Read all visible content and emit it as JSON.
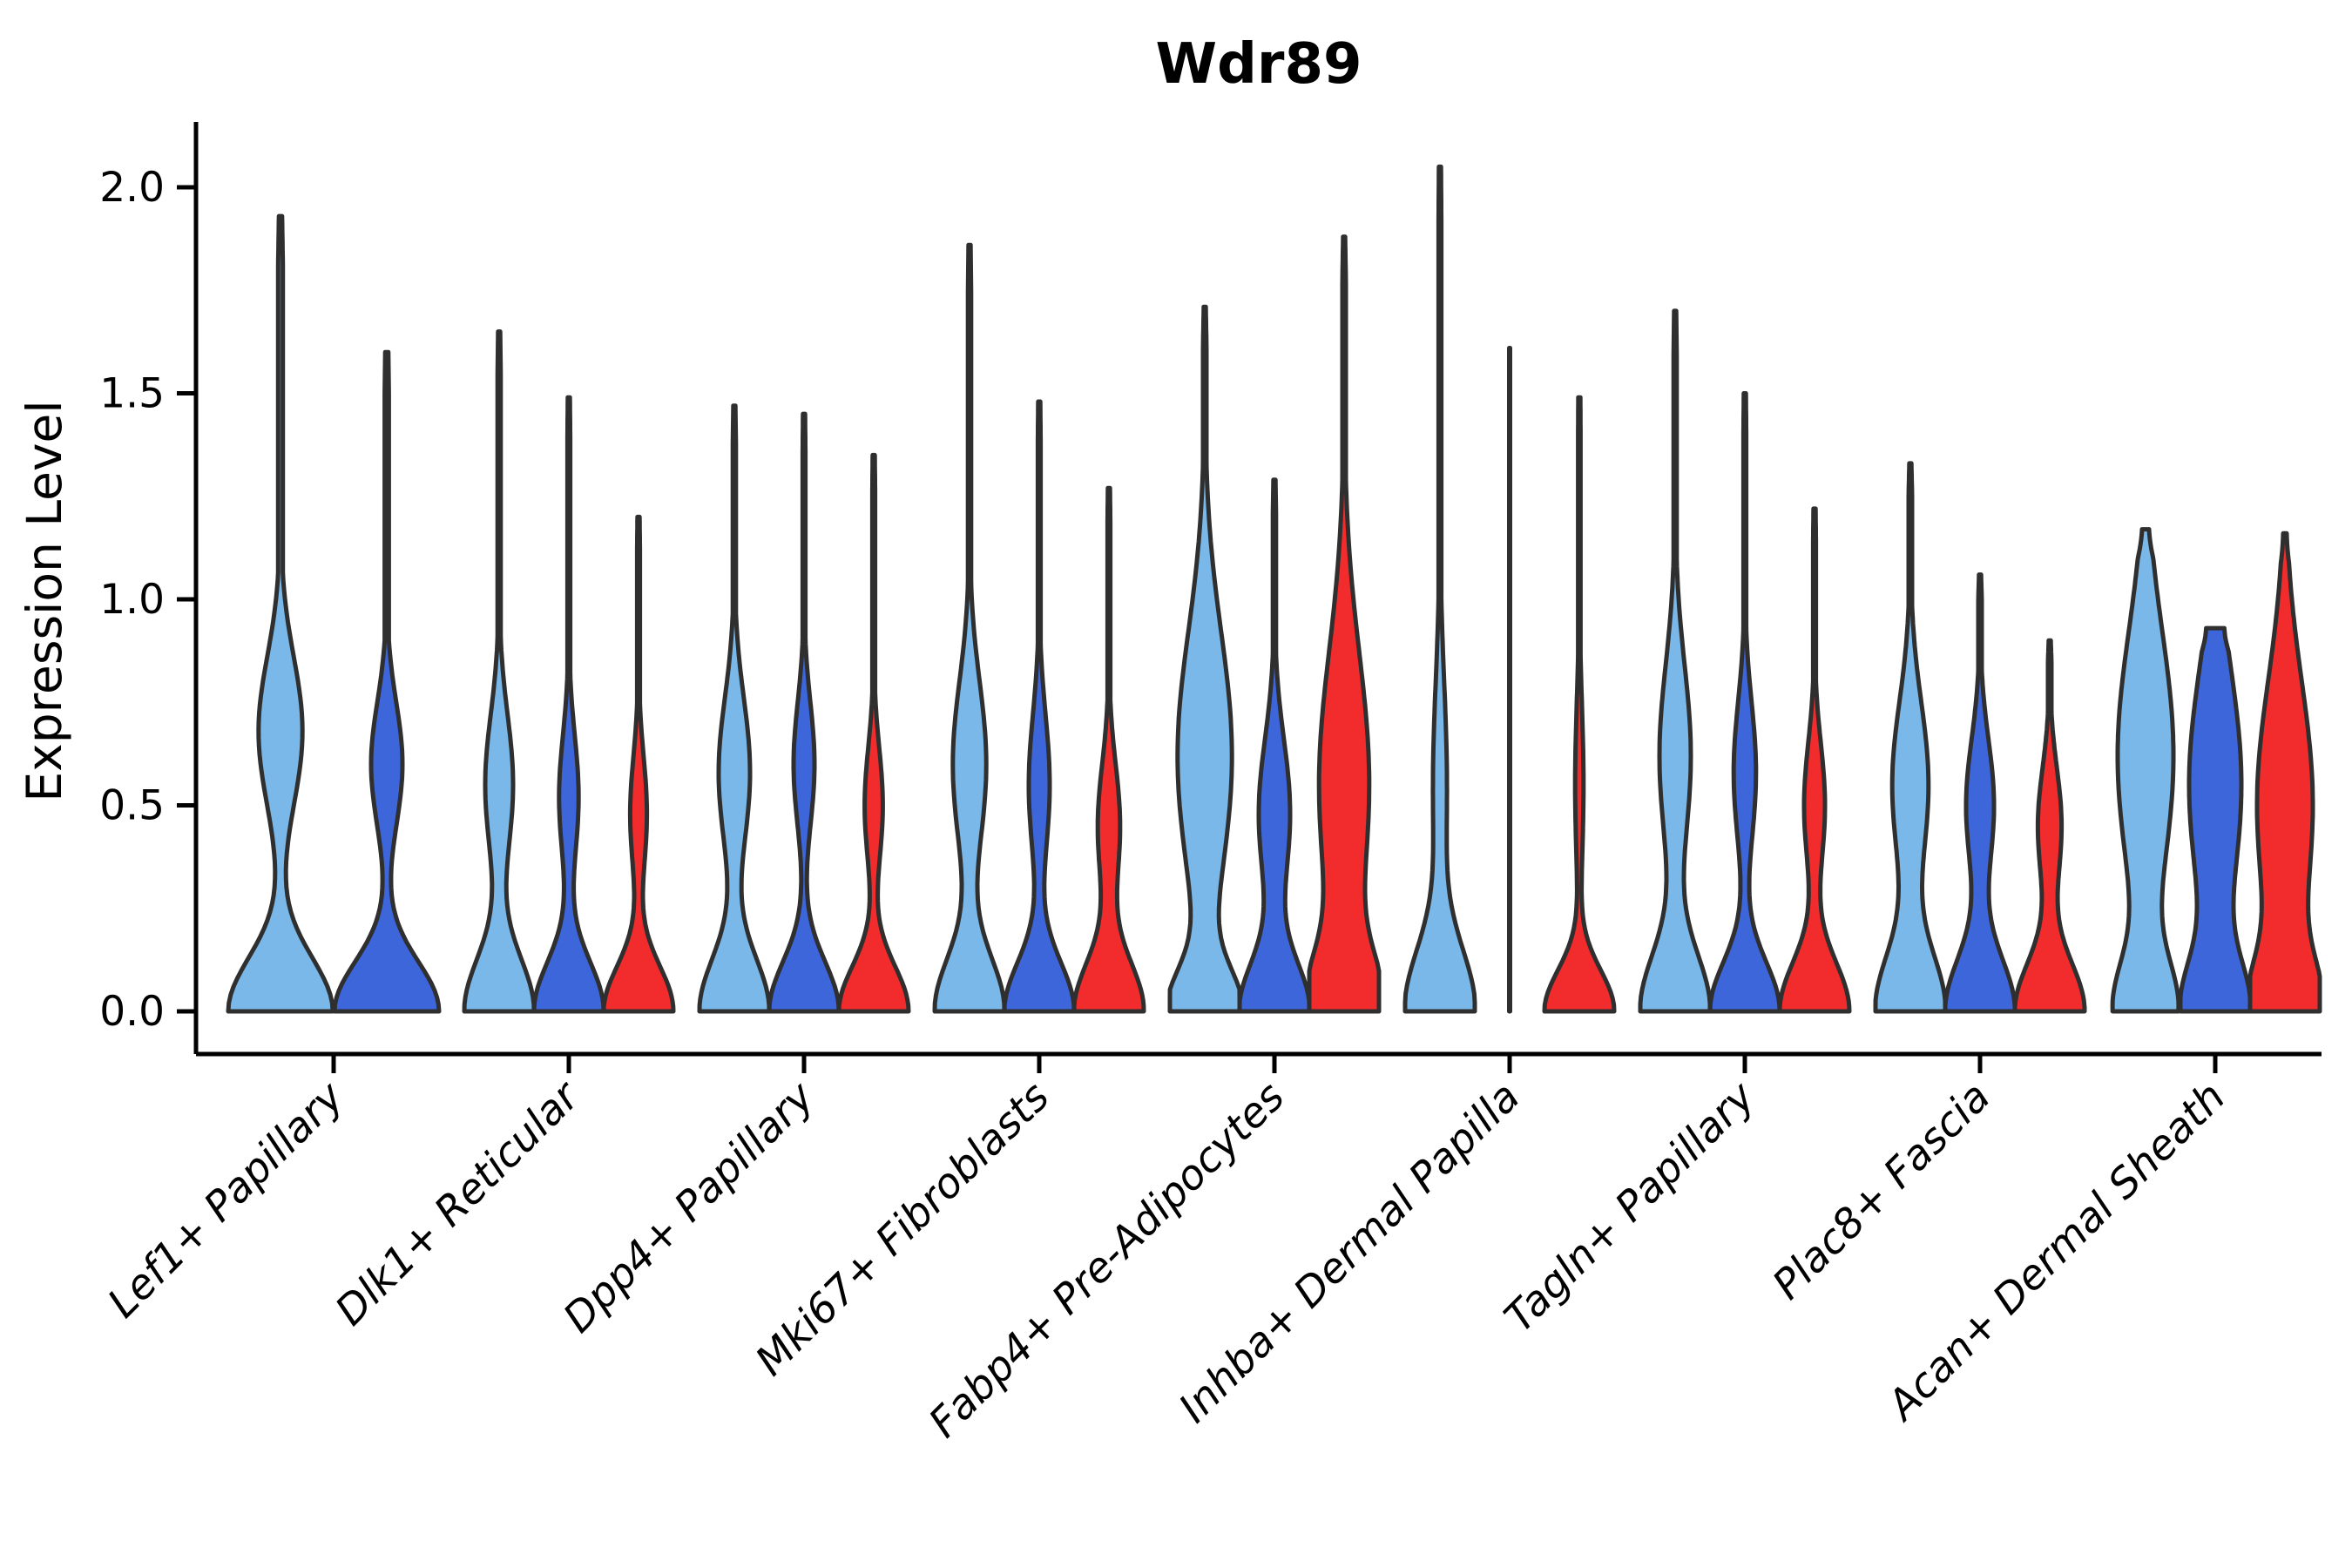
{
  "title": "Wdr89",
  "y_axis": {
    "label": "Expression Level",
    "tick_labels": [
      "0.0",
      "0.5",
      "1.0",
      "1.5",
      "2.0"
    ],
    "tick_values": [
      0.0,
      0.5,
      1.0,
      1.5,
      2.0
    ]
  },
  "colors": {
    "light_blue": "#79B8E8",
    "dark_blue": "#3E66DB",
    "red": "#F22C2C",
    "outline": "#2F2F2F",
    "axis": "#000000"
  },
  "chart_data": {
    "type": "violin",
    "title": "Wdr89",
    "xlabel": "",
    "ylabel": "Expression Level",
    "ylim": [
      0,
      2.16
    ],
    "yticks": [
      0.0,
      0.5,
      1.0,
      1.5,
      2.0
    ],
    "legend": "none",
    "grid": false,
    "categories": [
      "Lef1+ Papillary",
      "Dlk1+ Reticular",
      "Dpp4+ Papillary",
      "Mki67+ Fibroblasts",
      "Fabp4+ Pre-Adipocytes",
      "Inhba+ Dermal Papilla",
      "Tagln+ Papillary",
      "Plac8+ Fascia",
      "Acan+ Dermal Sheath"
    ],
    "groups": [
      {
        "category": "Lef1+ Papillary",
        "violins": [
          {
            "sample": "light_blue",
            "max": 1.93,
            "shape": {
              "base_w": 1.0,
              "base_s": 0.13,
              "bulge_v": 0.68,
              "bulge_w": 0.42,
              "bulge_s": 0.18,
              "stem_w": 0.045,
              "top_w": 0.03
            }
          },
          {
            "sample": "dark_blue",
            "max": 1.6,
            "shape": {
              "base_w": 1.0,
              "base_s": 0.12,
              "bulge_v": 0.6,
              "bulge_w": 0.3,
              "bulge_s": 0.15,
              "stem_w": 0.04,
              "top_w": 0.03
            }
          }
        ]
      },
      {
        "category": "Dlk1+ Reticular",
        "violins": [
          {
            "sample": "light_blue",
            "max": 1.65,
            "shape": {
              "base_w": 1.0,
              "base_s": 0.13,
              "bulge_v": 0.55,
              "bulge_w": 0.4,
              "bulge_s": 0.17,
              "stem_w": 0.045,
              "top_w": 0.03
            }
          },
          {
            "sample": "dark_blue",
            "max": 1.49,
            "shape": {
              "base_w": 1.0,
              "base_s": 0.12,
              "bulge_v": 0.52,
              "bulge_w": 0.28,
              "bulge_s": 0.15,
              "stem_w": 0.04,
              "top_w": 0.03
            }
          },
          {
            "sample": "red",
            "max": 1.2,
            "shape": {
              "base_w": 1.0,
              "base_s": 0.11,
              "bulge_v": 0.48,
              "bulge_w": 0.24,
              "bulge_s": 0.14,
              "stem_w": 0.04,
              "top_w": 0.03
            }
          }
        ]
      },
      {
        "category": "Dpp4+ Papillary",
        "violins": [
          {
            "sample": "light_blue",
            "max": 1.47,
            "shape": {
              "base_w": 1.0,
              "base_s": 0.13,
              "bulge_v": 0.58,
              "bulge_w": 0.45,
              "bulge_s": 0.18,
              "stem_w": 0.045,
              "top_w": 0.03
            }
          },
          {
            "sample": "dark_blue",
            "max": 1.45,
            "shape": {
              "base_w": 1.0,
              "base_s": 0.12,
              "bulge_v": 0.6,
              "bulge_w": 0.3,
              "bulge_s": 0.15,
              "stem_w": 0.04,
              "top_w": 0.03
            }
          },
          {
            "sample": "red",
            "max": 1.35,
            "shape": {
              "base_w": 1.0,
              "base_s": 0.11,
              "bulge_v": 0.5,
              "bulge_w": 0.26,
              "bulge_s": 0.14,
              "stem_w": 0.04,
              "top_w": 0.03
            }
          }
        ]
      },
      {
        "category": "Mki67+ Fibroblasts",
        "violins": [
          {
            "sample": "light_blue",
            "max": 1.86,
            "shape": {
              "base_w": 1.0,
              "base_s": 0.13,
              "bulge_v": 0.6,
              "bulge_w": 0.48,
              "bulge_s": 0.2,
              "stem_w": 0.045,
              "top_w": 0.03
            }
          },
          {
            "sample": "dark_blue",
            "max": 1.48,
            "shape": {
              "base_w": 1.0,
              "base_s": 0.12,
              "bulge_v": 0.55,
              "bulge_w": 0.3,
              "bulge_s": 0.17,
              "stem_w": 0.04,
              "top_w": 0.03
            }
          },
          {
            "sample": "red",
            "max": 1.27,
            "shape": {
              "base_w": 1.0,
              "base_s": 0.12,
              "bulge_v": 0.45,
              "bulge_w": 0.32,
              "bulge_s": 0.15,
              "stem_w": 0.04,
              "top_w": 0.03
            }
          }
        ]
      },
      {
        "category": "Fabp4+ Pre-Adipocytes",
        "violins": [
          {
            "sample": "light_blue",
            "max": 1.71,
            "shape": {
              "base_w": 1.0,
              "base_s": 0.1,
              "bulge_v": 0.62,
              "bulge_w": 0.78,
              "bulge_s": 0.3,
              "stem_w": 0.05,
              "top_w": 0.03
            }
          },
          {
            "sample": "dark_blue",
            "max": 1.29,
            "shape": {
              "base_w": 1.0,
              "base_s": 0.12,
              "bulge_v": 0.48,
              "bulge_w": 0.45,
              "bulge_s": 0.18,
              "stem_w": 0.045,
              "top_w": 0.03
            }
          },
          {
            "sample": "red",
            "max": 1.88,
            "shape": {
              "base_w": 1.0,
              "base_s": 0.13,
              "bulge_v": 0.55,
              "bulge_w": 0.72,
              "bulge_s": 0.32,
              "stem_w": 0.05,
              "top_w": 0.03
            }
          }
        ]
      },
      {
        "category": "Inhba+ Dermal Papilla",
        "violins": [
          {
            "sample": "light_blue",
            "max": 2.05,
            "shape": {
              "base_w": 1.0,
              "base_s": 0.15,
              "bulge_v": 0.55,
              "bulge_w": 0.2,
              "bulge_s": 0.25,
              "stem_w": 0.04,
              "top_w": 0.03
            }
          },
          {
            "sample": "dark_blue",
            "max": 1.61,
            "shape": {
              "base_w": 0.0,
              "base_s": 0.13,
              "bulge_v": 0.5,
              "bulge_w": 0.0,
              "bulge_s": 0.18,
              "stem_w": 0.012,
              "top_w": 0.012
            }
          },
          {
            "sample": "red",
            "max": 1.49,
            "shape": {
              "base_w": 1.0,
              "base_s": 0.1,
              "bulge_v": 0.55,
              "bulge_w": 0.12,
              "bulge_s": 0.2,
              "stem_w": 0.035,
              "top_w": 0.03
            }
          }
        ]
      },
      {
        "category": "Tagln+ Papillary",
        "violins": [
          {
            "sample": "light_blue",
            "max": 1.7,
            "shape": {
              "base_w": 1.0,
              "base_s": 0.14,
              "bulge_v": 0.62,
              "bulge_w": 0.45,
              "bulge_s": 0.22,
              "stem_w": 0.045,
              "top_w": 0.03
            }
          },
          {
            "sample": "dark_blue",
            "max": 1.5,
            "shape": {
              "base_w": 1.0,
              "base_s": 0.12,
              "bulge_v": 0.58,
              "bulge_w": 0.32,
              "bulge_s": 0.17,
              "stem_w": 0.04,
              "top_w": 0.03
            }
          },
          {
            "sample": "red",
            "max": 1.22,
            "shape": {
              "base_w": 1.0,
              "base_s": 0.12,
              "bulge_v": 0.5,
              "bulge_w": 0.3,
              "bulge_s": 0.15,
              "stem_w": 0.04,
              "top_w": 0.03
            }
          }
        ]
      },
      {
        "category": "Plac8+ Fascia",
        "violins": [
          {
            "sample": "light_blue",
            "max": 1.33,
            "shape": {
              "base_w": 1.0,
              "base_s": 0.14,
              "bulge_v": 0.55,
              "bulge_w": 0.52,
              "bulge_s": 0.2,
              "stem_w": 0.05,
              "top_w": 0.03
            }
          },
          {
            "sample": "dark_blue",
            "max": 1.06,
            "shape": {
              "base_w": 1.0,
              "base_s": 0.13,
              "bulge_v": 0.5,
              "bulge_w": 0.4,
              "bulge_s": 0.16,
              "stem_w": 0.05,
              "top_w": 0.03
            }
          },
          {
            "sample": "red",
            "max": 0.9,
            "shape": {
              "base_w": 1.0,
              "base_s": 0.12,
              "bulge_v": 0.45,
              "bulge_w": 0.34,
              "bulge_s": 0.14,
              "stem_w": 0.05,
              "top_w": 0.03
            }
          }
        ]
      },
      {
        "category": "Acan+ Dermal Sheath",
        "violins": [
          {
            "sample": "light_blue",
            "max": 1.17,
            "shape": {
              "base_w": 0.85,
              "base_s": 0.12,
              "bulge_v": 0.62,
              "bulge_w": 0.8,
              "bulge_s": 0.3,
              "stem_w": 0.1,
              "top_w": 0.1
            }
          },
          {
            "sample": "dark_blue",
            "max": 0.93,
            "shape": {
              "base_w": 0.9,
              "base_s": 0.12,
              "bulge_v": 0.55,
              "bulge_w": 0.75,
              "bulge_s": 0.28,
              "stem_w": 0.15,
              "top_w": 0.26
            }
          },
          {
            "sample": "red",
            "max": 1.16,
            "shape": {
              "base_w": 0.9,
              "base_s": 0.12,
              "bulge_v": 0.5,
              "bulge_w": 0.8,
              "bulge_s": 0.3,
              "stem_w": 0.05,
              "top_w": 0.05
            }
          }
        ]
      }
    ]
  }
}
